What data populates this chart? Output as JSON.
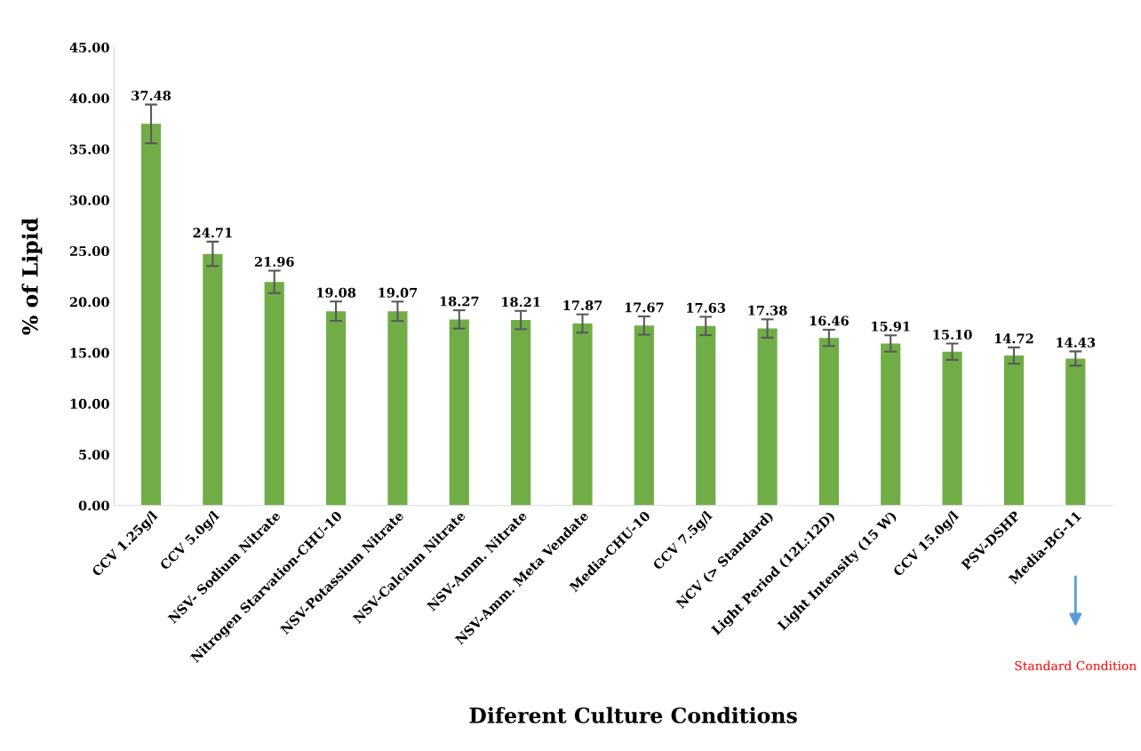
{
  "chart_data": {
    "type": "bar",
    "xlabel": "Diferent Culture Conditions",
    "ylabel": "% of Lipid",
    "categories": [
      "CCV 1.25g/l",
      "CCV 5.0g/l",
      "NSV- Sodium Nitrate",
      "Nitrogen Starvation-CHU-10",
      "NSV-Potassium Nitrate",
      "NSV-Calcium Nitrate",
      "NSV-Amm. Nitrate",
      "NSV-Amm. Meta Vendate",
      "Media-CHU-10",
      "CCV 7.5g/l",
      "NCV (> Standard)",
      "Light Period (12L:12D)",
      "Light Intensity (15 W)",
      "CCV 15.0g/l",
      "PSV-DSHP",
      "Media-BG-11"
    ],
    "values": [
      37.48,
      24.71,
      21.96,
      19.08,
      19.07,
      18.27,
      18.21,
      17.87,
      17.67,
      17.63,
      17.38,
      16.46,
      15.91,
      15.1,
      14.72,
      14.43
    ],
    "value_labels": [
      "37.48",
      "24.71",
      "21.96",
      "19.08",
      "19.07",
      "18.27",
      "18.21",
      "17.87",
      "17.67",
      "17.63",
      "17.38",
      "16.46",
      "15.91",
      "15.10",
      "14.72",
      "14.43"
    ],
    "errors": [
      1.9,
      1.2,
      1.1,
      0.95,
      0.95,
      0.9,
      0.9,
      0.9,
      0.9,
      0.9,
      0.9,
      0.8,
      0.8,
      0.8,
      0.8,
      0.7
    ],
    "color": "#70ad47",
    "ylim": [
      0,
      45
    ],
    "yticks": [
      {
        "value": 0,
        "label": "0.00"
      },
      {
        "value": 5,
        "label": "5.00"
      },
      {
        "value": 10,
        "label": "10.00"
      },
      {
        "value": 15,
        "label": "15.00"
      },
      {
        "value": 20,
        "label": "20.00"
      },
      {
        "value": 25,
        "label": "25.00"
      },
      {
        "value": 30,
        "label": "30.00"
      },
      {
        "value": 35,
        "label": "35.00"
      },
      {
        "value": 40,
        "label": "40.00"
      },
      {
        "value": 45,
        "label": "45.00"
      }
    ],
    "grid": false,
    "annotations": [
      "Standard Condition"
    ]
  }
}
